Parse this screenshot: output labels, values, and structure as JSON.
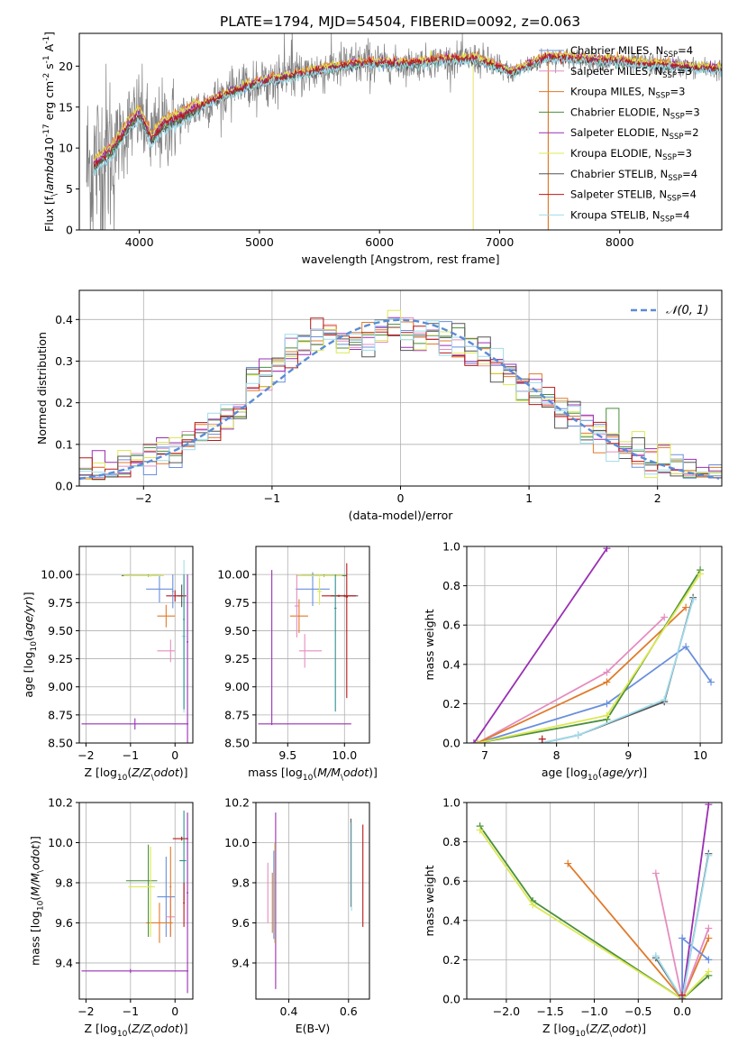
{
  "figure": {
    "title": "PLATE=1794, MJD=54504, FIBERID=0092, z=0.063"
  },
  "colors": {
    "c1": "#6a8fdc",
    "c2": "#e68cc0",
    "c3": "#e07a2a",
    "c4": "#4a8f3a",
    "c5": "#9a2fb4",
    "c6": "#dde855",
    "c7": "#555555",
    "c8": "#b81818",
    "c9": "#9fdcec",
    "cgreenish": "#9ac93a",
    "cteal": "#2e9090",
    "data": "#808080",
    "normal": "#5b8bd6"
  },
  "chart_data": [
    {
      "id": "spectrum",
      "type": "line",
      "xlabel": "wavelength [Angstrom, rest frame]",
      "ylabel": "Flux [f$_\\lambda$10$^{-17}$ erg cm$^{-2}$ s$^{-1}$ A$^{-1}$]",
      "xlim": [
        3500,
        8850
      ],
      "ylim": [
        0,
        24
      ],
      "xticks": [
        4000,
        5000,
        6000,
        7000,
        8000
      ],
      "yticks": [
        0,
        5,
        10,
        15,
        20
      ],
      "legend_position": "upper-right",
      "legend": [
        {
          "text": "Chabrier MILES, N",
          "sub": "SSP",
          "tail": "=4",
          "color": "c1"
        },
        {
          "text": "Salpeter MILES, N",
          "sub": "SSP",
          "tail": "=3",
          "color": "c2"
        },
        {
          "text": "Kroupa MILES, N",
          "sub": "SSP",
          "tail": "=3",
          "color": "c3"
        },
        {
          "text": "Chabrier ELODIE, N",
          "sub": "SSP",
          "tail": "=3",
          "color": "c4"
        },
        {
          "text": "Salpeter ELODIE, N",
          "sub": "SSP",
          "tail": "=2",
          "color": "c5"
        },
        {
          "text": "Kroupa ELODIE, N",
          "sub": "SSP",
          "tail": "=3",
          "color": "c6"
        },
        {
          "text": "Chabrier STELIB, N",
          "sub": "SSP",
          "tail": "=4",
          "color": "c7"
        },
        {
          "text": "Salpeter STELIB, N",
          "sub": "SSP",
          "tail": "=4",
          "color": "c8"
        },
        {
          "text": "Kroupa STELIB, N",
          "sub": "SSP",
          "tail": "=4",
          "color": "c9"
        }
      ],
      "model_continuum": {
        "x": [
          3600,
          3700,
          3800,
          3900,
          4000,
          4100,
          4200,
          4300,
          4500,
          4700,
          5000,
          5300,
          5600,
          5900,
          6200,
          6500,
          6800,
          7100,
          7400,
          7700,
          8000,
          8300,
          8600,
          8850
        ],
        "y": [
          7.5,
          8.8,
          10.2,
          12.5,
          14.2,
          11.0,
          12.8,
          13.4,
          15.0,
          16.4,
          18.0,
          18.9,
          19.8,
          20.4,
          20.2,
          20.7,
          20.9,
          19.2,
          21.1,
          20.8,
          20.5,
          20.2,
          19.8,
          19.6
        ]
      }
    },
    {
      "id": "residuals",
      "type": "line",
      "xlabel": "(data-model)/error",
      "ylabel": "Normed distribution",
      "xlim": [
        -2.5,
        2.5
      ],
      "ylim": [
        0,
        0.47
      ],
      "xticks": [
        -2,
        -1,
        0,
        1,
        2
      ],
      "yticks": [
        0.0,
        0.1,
        0.2,
        0.3,
        0.4
      ],
      "grid": true,
      "legend_position": "upper-right",
      "legend": [
        {
          "text": "𝒩(0, 1)",
          "color": "normal",
          "dashed": true
        }
      ],
      "bin_width": 0.1,
      "bins_from": -2.5
    },
    {
      "id": "age-vs-Z",
      "type": "scatter",
      "xlabel": "Z [log$_{10}$($Z/Z_\\odot$)]",
      "ylabel": "age  [log$_{10}$($age/yr$)]",
      "xlim": [
        -2.15,
        0.4
      ],
      "ylim": [
        8.5,
        10.25
      ],
      "xticks": [
        -2,
        -1,
        0
      ],
      "yticks": [
        8.5,
        8.75,
        9.0,
        9.25,
        9.5,
        9.75,
        10.0
      ],
      "grid": true,
      "points": [
        {
          "x": -0.35,
          "y": 9.87,
          "xerr": [
            0.3,
            0.3
          ],
          "yerr": [
            0.12,
            0.12
          ],
          "color": "c1"
        },
        {
          "x": -0.1,
          "y": 9.32,
          "xerr": [
            0.3,
            0.1
          ],
          "yerr": [
            0.1,
            0.1
          ],
          "color": "c2"
        },
        {
          "x": -0.2,
          "y": 9.63,
          "xerr": [
            0.2,
            0.2
          ],
          "yerr": [
            0.1,
            0.1
          ],
          "color": "c3"
        },
        {
          "x": -0.6,
          "y": 9.99,
          "xerr": [
            0.6,
            0.3
          ],
          "yerr": [
            0.01,
            0.01
          ],
          "color": "c4"
        },
        {
          "x": -0.9,
          "y": 8.67,
          "xerr": [
            1.2,
            1.2
          ],
          "yerr": [
            0.05,
            0.05
          ],
          "color": "c5"
        },
        {
          "x": -0.55,
          "y": 9.99,
          "xerr": [
            0.6,
            0.3
          ],
          "yerr": [
            0.01,
            0.01
          ],
          "color": "c6"
        },
        {
          "x": 0.15,
          "y": 9.81,
          "xerr": [
            0.1,
            0.1
          ],
          "yerr": [
            0.1,
            0.1
          ],
          "color": "c7"
        },
        {
          "x": 0.0,
          "y": 9.81,
          "xerr": [
            0.2,
            0.25
          ],
          "yerr": [
            0.05,
            0.05
          ],
          "color": "c8"
        },
        {
          "x": 0.2,
          "y": 9.45,
          "xerr": [
            0.05,
            0.05
          ],
          "yerr": [
            0.68,
            0.68
          ],
          "color": "c9"
        },
        {
          "x": 0.2,
          "y": 9.6,
          "xerr": [
            0.02,
            0.02
          ],
          "yerr": [
            0.8,
            0.4
          ],
          "color": "cteal"
        },
        {
          "x": 0.28,
          "y": 9.4,
          "xerr": [
            0.02,
            0.02
          ],
          "yerr": [
            0.9,
            0.6
          ],
          "color": "c5"
        },
        {
          "x": -0.05,
          "y": 9.85,
          "xerr": [
            0.02,
            0.02
          ],
          "yerr": [
            0.15,
            0.15
          ],
          "color": "c1"
        }
      ]
    },
    {
      "id": "age-vs-mass",
      "type": "scatter",
      "xlabel": "mass [log$_{10}$($M/M_\\odot$)]",
      "ylabel": "",
      "xlim": [
        9.22,
        10.22
      ],
      "ylim": [
        8.5,
        10.25
      ],
      "xticks": [
        9.5,
        10.0
      ],
      "yticks": [
        8.5,
        8.75,
        9.0,
        9.25,
        9.5,
        9.75,
        10.0
      ],
      "grid": true,
      "points": [
        {
          "x": 9.72,
          "y": 9.87,
          "xerr": [
            0.15,
            0.15
          ],
          "yerr": [
            0.15,
            0.15
          ],
          "color": "c1"
        },
        {
          "x": 9.65,
          "y": 9.32,
          "xerr": [
            0.05,
            0.15
          ],
          "yerr": [
            0.15,
            0.15
          ],
          "color": "c2"
        },
        {
          "x": 9.6,
          "y": 9.63,
          "xerr": [
            0.08,
            0.08
          ],
          "yerr": [
            0.15,
            0.15
          ],
          "color": "c3"
        },
        {
          "x": 9.82,
          "y": 9.99,
          "xerr": [
            0.2,
            0.2
          ],
          "yerr": [
            0.01,
            0.01
          ],
          "color": "c4"
        },
        {
          "x": 9.36,
          "y": 8.67,
          "xerr": [
            0.12,
            0.7
          ],
          "yerr": [
            0.01,
            1.37
          ],
          "color": "c5"
        },
        {
          "x": 9.78,
          "y": 9.99,
          "xerr": [
            0.2,
            0.2
          ],
          "yerr": [
            0.01,
            0.01
          ],
          "color": "c6"
        },
        {
          "x": 10.0,
          "y": 9.81,
          "xerr": [
            0.12,
            0.12
          ],
          "yerr": [
            0.01,
            0.01
          ],
          "color": "c7"
        },
        {
          "x": 9.95,
          "y": 9.81,
          "xerr": [
            0.15,
            0.15
          ],
          "yerr": [
            0.01,
            0.01
          ],
          "color": "c8"
        },
        {
          "x": 10.02,
          "y": 9.8,
          "xerr": [
            0.01,
            0.01
          ],
          "yerr": [
            0.9,
            0.3
          ],
          "color": "c8"
        },
        {
          "x": 9.92,
          "y": 9.7,
          "xerr": [
            0.01,
            0.01
          ],
          "yerr": [
            0.92,
            0.3
          ],
          "color": "cteal"
        },
        {
          "x": 9.78,
          "y": 9.85,
          "xerr": [
            0.02,
            0.02
          ],
          "yerr": [
            0.12,
            0.12
          ],
          "color": "c6"
        },
        {
          "x": 9.58,
          "y": 9.72,
          "xerr": [
            0.02,
            0.02
          ],
          "yerr": [
            0.28,
            0.28
          ],
          "color": "c2"
        }
      ]
    },
    {
      "id": "weight-vs-age",
      "type": "line",
      "xlabel": "age  [log$_{10}$($age/yr$)]",
      "ylabel": "mass weight",
      "xlim": [
        6.75,
        10.3
      ],
      "ylim": [
        0.0,
        1.0
      ],
      "xticks": [
        7,
        8,
        9,
        10
      ],
      "yticks": [
        0.0,
        0.2,
        0.4,
        0.6,
        0.8,
        1.0
      ],
      "grid": true,
      "series": [
        {
          "color": "c5",
          "x": [
            6.85,
            8.7
          ],
          "y": [
            0.0,
            0.99
          ]
        },
        {
          "color": "c1",
          "x": [
            6.9,
            8.7,
            9.8,
            10.15
          ],
          "y": [
            0.0,
            0.2,
            0.49,
            0.31
          ]
        },
        {
          "color": "c2",
          "x": [
            6.9,
            8.7,
            9.5
          ],
          "y": [
            0.0,
            0.36,
            0.64
          ]
        },
        {
          "color": "c3",
          "x": [
            6.9,
            8.7,
            9.8
          ],
          "y": [
            0.0,
            0.31,
            0.69
          ]
        },
        {
          "color": "c4",
          "x": [
            6.9,
            8.7,
            10.0
          ],
          "y": [
            0.0,
            0.12,
            0.88
          ]
        },
        {
          "color": "c6",
          "x": [
            6.9,
            8.7,
            10.0
          ],
          "y": [
            0.0,
            0.14,
            0.86
          ]
        },
        {
          "color": "c7",
          "x": [
            7.8,
            8.3,
            9.5,
            9.9
          ],
          "y": [
            0.0,
            0.04,
            0.21,
            0.74
          ]
        },
        {
          "color": "c9",
          "x": [
            7.8,
            8.3,
            9.5,
            9.9
          ],
          "y": [
            0.0,
            0.04,
            0.22,
            0.73
          ]
        },
        {
          "color": "c8",
          "x": [
            7.8
          ],
          "y": [
            0.02
          ]
        }
      ]
    },
    {
      "id": "mass-vs-Z",
      "type": "scatter",
      "xlabel": "Z [log$_{10}$($Z/Z_\\odot$)]",
      "ylabel": "mass [log$_{10}$($M/M_\\odot$)]",
      "xlim": [
        -2.15,
        0.4
      ],
      "ylim": [
        9.22,
        10.2
      ],
      "xticks": [
        -2,
        -1,
        0
      ],
      "yticks": [
        9.4,
        9.6,
        9.8,
        10.0,
        10.2
      ],
      "grid": true,
      "points": [
        {
          "x": -0.2,
          "y": 9.73,
          "xerr": [
            0.2,
            0.2
          ],
          "yerr": [
            0.2,
            0.2
          ],
          "color": "c1"
        },
        {
          "x": -0.1,
          "y": 9.63,
          "xerr": [
            0.1,
            0.1
          ],
          "yerr": [
            0.1,
            0.1
          ],
          "color": "c2"
        },
        {
          "x": -0.35,
          "y": 9.6,
          "xerr": [
            0.3,
            0.3
          ],
          "yerr": [
            0.1,
            0.1
          ],
          "color": "c3"
        },
        {
          "x": -0.6,
          "y": 9.81,
          "xerr": [
            0.5,
            0.2
          ],
          "yerr": [
            0.28,
            0.18
          ],
          "color": "c4"
        },
        {
          "x": -1.0,
          "y": 9.36,
          "xerr": [
            1.1,
            1.3
          ],
          "yerr": [
            0.01,
            0.01
          ],
          "color": "c5"
        },
        {
          "x": -0.55,
          "y": 9.78,
          "xerr": [
            0.5,
            0.1
          ],
          "yerr": [
            0.25,
            0.2
          ],
          "color": "c6"
        },
        {
          "x": 0.15,
          "y": 10.02,
          "xerr": [
            0.2,
            0.15
          ],
          "yerr": [
            0.01,
            0.01
          ],
          "color": "c8"
        },
        {
          "x": 0.2,
          "y": 9.91,
          "xerr": [
            0.1,
            0.05
          ],
          "yerr": [
            0.2,
            0.25
          ],
          "color": "cteal"
        },
        {
          "x": 0.28,
          "y": 9.75,
          "xerr": [
            0.02,
            0.02
          ],
          "yerr": [
            0.5,
            0.4
          ],
          "color": "c5"
        },
        {
          "x": -0.1,
          "y": 9.78,
          "xerr": [
            0.02,
            0.02
          ],
          "yerr": [
            0.25,
            0.2
          ],
          "color": "c3"
        },
        {
          "x": 0.2,
          "y": 9.7,
          "xerr": [
            0.02,
            0.02
          ],
          "yerr": [
            0.12,
            0.1
          ],
          "color": "c8"
        }
      ]
    },
    {
      "id": "mass-vs-EBV",
      "type": "scatter",
      "xlabel": "E(B-V)",
      "ylabel": "",
      "xlim": [
        0.29,
        0.67
      ],
      "ylim": [
        9.22,
        10.2
      ],
      "xticks": [
        0.4,
        0.6
      ],
      "yticks": [
        9.4,
        9.6,
        9.8,
        10.0,
        10.2
      ],
      "grid": true,
      "points": [
        {
          "x": 0.33,
          "y": 9.75,
          "xerr": [
            0,
            0
          ],
          "yerr": [
            0.15,
            0.15
          ],
          "color": "c2"
        },
        {
          "x": 0.345,
          "y": 9.7,
          "xerr": [
            0,
            0
          ],
          "yerr": [
            0.15,
            0.15
          ],
          "color": "c3"
        },
        {
          "x": 0.352,
          "y": 9.75,
          "xerr": [
            0,
            0
          ],
          "yerr": [
            0.25,
            0.25
          ],
          "color": "c6"
        },
        {
          "x": 0.356,
          "y": 9.72,
          "xerr": [
            0,
            0
          ],
          "yerr": [
            0.45,
            0.43
          ],
          "color": "c5"
        },
        {
          "x": 0.35,
          "y": 9.74,
          "xerr": [
            0,
            0
          ],
          "yerr": [
            0.22,
            0.22
          ],
          "color": "c1"
        },
        {
          "x": 0.608,
          "y": 9.9,
          "xerr": [
            0,
            0
          ],
          "yerr": [
            0.22,
            0.22
          ],
          "color": "c7"
        },
        {
          "x": 0.61,
          "y": 9.88,
          "xerr": [
            0,
            0
          ],
          "yerr": [
            0.22,
            0.22
          ],
          "color": "c9"
        },
        {
          "x": 0.648,
          "y": 9.82,
          "xerr": [
            0,
            0
          ],
          "yerr": [
            0.24,
            0.27
          ],
          "color": "c8"
        }
      ]
    },
    {
      "id": "weight-vs-Z",
      "type": "line",
      "xlabel": "Z [log$_{10}$($Z/Z_\\odot$)]",
      "ylabel": "mass weight",
      "xlim": [
        -2.45,
        0.45
      ],
      "ylim": [
        0.0,
        1.0
      ],
      "xticks": [
        -2.0,
        -1.5,
        -1.0,
        -0.5,
        0.0
      ],
      "yticks": [
        0.0,
        0.2,
        0.4,
        0.6,
        0.8,
        1.0
      ],
      "grid": true,
      "series": [
        {
          "color": "c4",
          "x": [
            -2.3,
            -1.7,
            0.0,
            0.3
          ],
          "y": [
            0.88,
            0.5,
            0.0,
            0.12
          ]
        },
        {
          "color": "c6",
          "x": [
            -2.3,
            -1.7,
            0.0,
            0.3
          ],
          "y": [
            0.86,
            0.48,
            0.0,
            0.14
          ]
        },
        {
          "color": "c3",
          "x": [
            -1.3,
            0.0,
            0.3
          ],
          "y": [
            0.69,
            0.0,
            0.31
          ]
        },
        {
          "color": "c2",
          "x": [
            -0.3,
            0.0,
            0.3
          ],
          "y": [
            0.64,
            0.0,
            0.36
          ]
        },
        {
          "color": "c5",
          "x": [
            0.0,
            0.3
          ],
          "y": [
            0.0,
            0.99
          ]
        },
        {
          "color": "c1",
          "x": [
            0.0,
            0.3
          ],
          "y": [
            0.31,
            0.2
          ]
        },
        {
          "color": "c1",
          "x": [
            0.0,
            0.0
          ],
          "y": [
            0.0,
            0.31
          ]
        },
        {
          "color": "c7",
          "x": [
            -0.3,
            0.0,
            0.3
          ],
          "y": [
            0.21,
            0.0,
            0.74
          ]
        },
        {
          "color": "c9",
          "x": [
            -0.3,
            0.0,
            0.3
          ],
          "y": [
            0.22,
            0.0,
            0.73
          ]
        },
        {
          "color": "c8",
          "x": [
            0.0
          ],
          "y": [
            0.02
          ]
        }
      ]
    }
  ]
}
